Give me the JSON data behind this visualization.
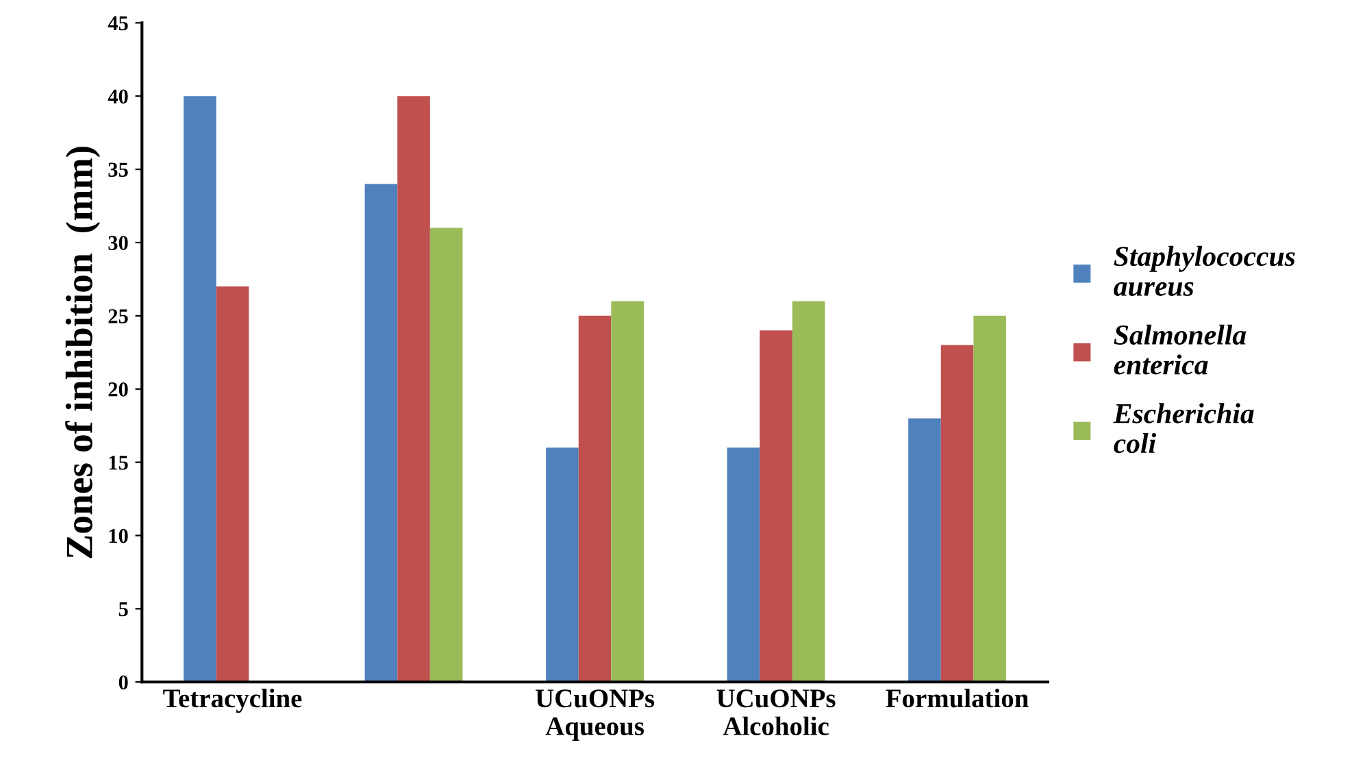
{
  "chart_data": {
    "type": "bar",
    "ylabel": "Zones of inhibition  (mm)",
    "categories": [
      "Tetracycline",
      null,
      "UCuONPs\nAqueous",
      "UCuONPs\nAlcoholic",
      "Formulation"
    ],
    "series": [
      {
        "name": "Staphylococcus aureus",
        "color": "#4f81bd",
        "values": [
          40,
          34,
          16,
          16,
          18
        ]
      },
      {
        "name": "Salmonella enterica",
        "color": "#c0504d",
        "values": [
          27,
          40,
          25,
          24,
          23
        ]
      },
      {
        "name": "Escherichia coli",
        "color": "#9bbb59",
        "values": [
          null,
          31,
          26,
          26,
          25
        ]
      }
    ],
    "ylim": [
      0,
      45
    ],
    "yticks": [
      0,
      5,
      10,
      15,
      20,
      25,
      30,
      35,
      40,
      45
    ],
    "grid": false,
    "legend": "right"
  }
}
